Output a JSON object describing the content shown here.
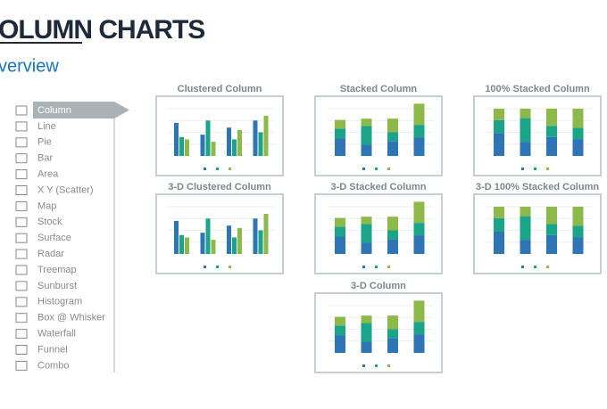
{
  "header": {
    "title": "OLUMN CHARTS",
    "subtitle": "verview"
  },
  "menu": {
    "items": [
      "Column",
      "Line",
      "Pie",
      "Bar",
      "Area",
      "X Y (Scatter)",
      "Map",
      "Stock",
      "Surface",
      "Radar",
      "Treemap",
      "Sunburst",
      "Histogram",
      "Box @ Whisker",
      "Waterfall",
      "Funnel",
      "Combo"
    ]
  },
  "thumbnails": [
    "Clustered Column",
    "Stacked Column",
    "100% Stacked Column",
    "3-D Clustered Column",
    "3-D Stacked Column",
    "3-D 100% Stacked Column",
    "3-D Column"
  ]
}
